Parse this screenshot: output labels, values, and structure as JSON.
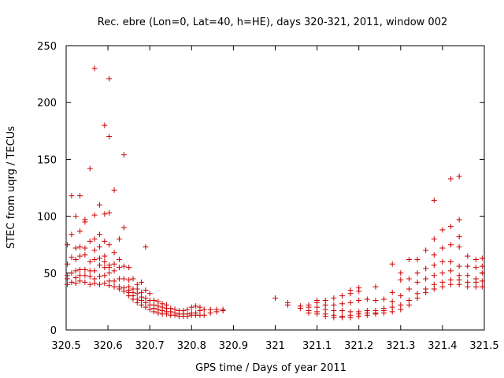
{
  "chart_data": {
    "type": "scatter",
    "title": "Rec. ebre (Lon=0, Lat=40, h=HE), days 320-321, 2011, window 002",
    "xlabel": "GPS time / Days of year 2011",
    "ylabel": "STEC from uqrg / TECUs",
    "xlim": [
      320.5,
      321.5
    ],
    "ylim": [
      0,
      250
    ],
    "xticks": [
      "320.5",
      "320.6",
      "320.7",
      "320.8",
      "320.9",
      "321",
      "321.1",
      "321.2",
      "321.3",
      "321.4",
      "321.5"
    ],
    "yticks": [
      "0",
      "50",
      "100",
      "150",
      "200",
      "250"
    ],
    "grid": false,
    "marker": "+",
    "marker_color": "#cc0000",
    "points": [
      [
        320.503,
        40
      ],
      [
        320.503,
        45
      ],
      [
        320.503,
        48
      ],
      [
        320.503,
        58
      ],
      [
        320.503,
        75
      ],
      [
        320.513,
        42
      ],
      [
        320.513,
        50
      ],
      [
        320.513,
        64
      ],
      [
        320.513,
        84
      ],
      [
        320.513,
        118
      ],
      [
        320.523,
        41
      ],
      [
        320.523,
        46
      ],
      [
        320.523,
        52
      ],
      [
        320.523,
        62
      ],
      [
        320.523,
        72
      ],
      [
        320.523,
        100
      ],
      [
        320.533,
        43
      ],
      [
        320.533,
        48
      ],
      [
        320.533,
        53
      ],
      [
        320.533,
        65
      ],
      [
        320.533,
        73
      ],
      [
        320.533,
        87
      ],
      [
        320.533,
        118
      ],
      [
        320.545,
        42
      ],
      [
        320.545,
        48
      ],
      [
        320.545,
        53
      ],
      [
        320.545,
        66
      ],
      [
        320.545,
        72
      ],
      [
        320.545,
        95
      ],
      [
        320.545,
        97
      ],
      [
        320.557,
        40
      ],
      [
        320.557,
        47
      ],
      [
        320.557,
        52
      ],
      [
        320.557,
        60
      ],
      [
        320.557,
        78
      ],
      [
        320.557,
        142
      ],
      [
        320.568,
        41
      ],
      [
        320.568,
        45
      ],
      [
        320.568,
        52
      ],
      [
        320.568,
        62
      ],
      [
        320.568,
        70
      ],
      [
        320.568,
        80
      ],
      [
        320.568,
        101
      ],
      [
        320.568,
        230
      ],
      [
        320.58,
        40
      ],
      [
        320.58,
        47
      ],
      [
        320.58,
        57
      ],
      [
        320.58,
        63
      ],
      [
        320.58,
        73
      ],
      [
        320.58,
        84
      ],
      [
        320.58,
        110
      ],
      [
        320.592,
        41
      ],
      [
        320.592,
        48
      ],
      [
        320.592,
        55
      ],
      [
        320.592,
        60
      ],
      [
        320.592,
        65
      ],
      [
        320.592,
        78
      ],
      [
        320.592,
        102
      ],
      [
        320.592,
        180
      ],
      [
        320.603,
        39
      ],
      [
        320.603,
        43
      ],
      [
        320.603,
        50
      ],
      [
        320.603,
        55
      ],
      [
        320.603,
        57
      ],
      [
        320.603,
        75
      ],
      [
        320.603,
        103
      ],
      [
        320.603,
        170
      ],
      [
        320.603,
        221
      ],
      [
        320.615,
        38
      ],
      [
        320.615,
        43
      ],
      [
        320.615,
        52
      ],
      [
        320.615,
        58
      ],
      [
        320.615,
        68
      ],
      [
        320.615,
        123
      ],
      [
        320.627,
        36
      ],
      [
        320.627,
        38
      ],
      [
        320.627,
        45
      ],
      [
        320.627,
        55
      ],
      [
        320.627,
        62
      ],
      [
        320.627,
        80
      ],
      [
        320.638,
        34
      ],
      [
        320.638,
        37
      ],
      [
        320.638,
        45
      ],
      [
        320.638,
        56
      ],
      [
        320.638,
        90
      ],
      [
        320.638,
        154
      ],
      [
        320.65,
        30
      ],
      [
        320.65,
        33
      ],
      [
        320.65,
        35
      ],
      [
        320.65,
        38
      ],
      [
        320.65,
        44
      ],
      [
        320.65,
        55
      ],
      [
        320.66,
        27
      ],
      [
        320.66,
        30
      ],
      [
        320.66,
        33
      ],
      [
        320.66,
        36
      ],
      [
        320.66,
        45
      ],
      [
        320.67,
        24
      ],
      [
        320.67,
        27
      ],
      [
        320.67,
        32
      ],
      [
        320.67,
        36
      ],
      [
        320.67,
        40
      ],
      [
        320.68,
        22
      ],
      [
        320.68,
        26
      ],
      [
        320.68,
        29
      ],
      [
        320.68,
        33
      ],
      [
        320.68,
        42
      ],
      [
        320.69,
        20
      ],
      [
        320.69,
        24
      ],
      [
        320.69,
        28
      ],
      [
        320.69,
        35
      ],
      [
        320.69,
        73
      ],
      [
        320.7,
        18
      ],
      [
        320.7,
        22
      ],
      [
        320.7,
        26
      ],
      [
        320.7,
        32
      ],
      [
        320.71,
        16
      ],
      [
        320.71,
        19
      ],
      [
        320.71,
        22
      ],
      [
        320.71,
        26
      ],
      [
        320.72,
        15
      ],
      [
        320.72,
        18
      ],
      [
        320.72,
        21
      ],
      [
        320.72,
        25
      ],
      [
        320.73,
        14
      ],
      [
        320.73,
        17
      ],
      [
        320.73,
        20
      ],
      [
        320.73,
        23
      ],
      [
        320.74,
        14
      ],
      [
        320.74,
        16
      ],
      [
        320.74,
        19
      ],
      [
        320.74,
        22
      ],
      [
        320.75,
        13
      ],
      [
        320.75,
        16
      ],
      [
        320.75,
        19
      ],
      [
        320.76,
        13
      ],
      [
        320.76,
        15
      ],
      [
        320.76,
        18
      ],
      [
        320.77,
        12
      ],
      [
        320.77,
        14
      ],
      [
        320.77,
        17
      ],
      [
        320.78,
        12
      ],
      [
        320.78,
        14
      ],
      [
        320.78,
        17
      ],
      [
        320.79,
        12
      ],
      [
        320.79,
        14
      ],
      [
        320.79,
        18
      ],
      [
        320.8,
        13
      ],
      [
        320.8,
        15
      ],
      [
        320.8,
        20
      ],
      [
        320.81,
        13
      ],
      [
        320.81,
        15
      ],
      [
        320.81,
        21
      ],
      [
        320.82,
        13
      ],
      [
        320.82,
        17
      ],
      [
        320.82,
        20
      ],
      [
        320.83,
        13
      ],
      [
        320.83,
        18
      ],
      [
        320.845,
        15
      ],
      [
        320.845,
        18
      ],
      [
        320.86,
        16
      ],
      [
        320.86,
        18
      ],
      [
        320.875,
        17
      ],
      [
        320.875,
        18
      ],
      [
        321.0,
        28
      ],
      [
        321.03,
        24
      ],
      [
        321.03,
        22
      ],
      [
        321.06,
        19
      ],
      [
        321.06,
        21
      ],
      [
        321.08,
        15
      ],
      [
        321.08,
        17
      ],
      [
        321.08,
        20
      ],
      [
        321.08,
        22
      ],
      [
        321.1,
        14
      ],
      [
        321.1,
        16
      ],
      [
        321.1,
        20
      ],
      [
        321.1,
        24
      ],
      [
        321.1,
        26
      ],
      [
        321.12,
        12
      ],
      [
        321.12,
        14
      ],
      [
        321.12,
        18
      ],
      [
        321.12,
        22
      ],
      [
        321.12,
        26
      ],
      [
        321.14,
        11
      ],
      [
        321.14,
        13
      ],
      [
        321.14,
        17
      ],
      [
        321.14,
        22
      ],
      [
        321.14,
        28
      ],
      [
        321.16,
        11
      ],
      [
        321.16,
        12
      ],
      [
        321.16,
        17
      ],
      [
        321.16,
        23
      ],
      [
        321.16,
        30
      ],
      [
        321.18,
        11
      ],
      [
        321.18,
        13
      ],
      [
        321.18,
        16
      ],
      [
        321.18,
        24
      ],
      [
        321.18,
        32
      ],
      [
        321.18,
        35
      ],
      [
        321.2,
        12
      ],
      [
        321.2,
        14
      ],
      [
        321.2,
        16
      ],
      [
        321.2,
        26
      ],
      [
        321.2,
        34
      ],
      [
        321.2,
        37
      ],
      [
        321.22,
        13
      ],
      [
        321.22,
        15
      ],
      [
        321.22,
        17
      ],
      [
        321.22,
        27
      ],
      [
        321.24,
        14
      ],
      [
        321.24,
        15
      ],
      [
        321.24,
        17
      ],
      [
        321.24,
        26
      ],
      [
        321.24,
        38
      ],
      [
        321.26,
        15
      ],
      [
        321.26,
        17
      ],
      [
        321.26,
        19
      ],
      [
        321.26,
        27
      ],
      [
        321.28,
        16
      ],
      [
        321.28,
        20
      ],
      [
        321.28,
        25
      ],
      [
        321.28,
        33
      ],
      [
        321.28,
        58
      ],
      [
        321.3,
        18
      ],
      [
        321.3,
        22
      ],
      [
        321.3,
        30
      ],
      [
        321.3,
        44
      ],
      [
        321.3,
        50
      ],
      [
        321.32,
        22
      ],
      [
        321.32,
        26
      ],
      [
        321.32,
        36
      ],
      [
        321.32,
        45
      ],
      [
        321.32,
        62
      ],
      [
        321.34,
        28
      ],
      [
        321.34,
        32
      ],
      [
        321.34,
        42
      ],
      [
        321.34,
        50
      ],
      [
        321.34,
        62
      ],
      [
        321.36,
        33
      ],
      [
        321.36,
        36
      ],
      [
        321.36,
        45
      ],
      [
        321.36,
        54
      ],
      [
        321.36,
        70
      ],
      [
        321.38,
        36
      ],
      [
        321.38,
        40
      ],
      [
        321.38,
        48
      ],
      [
        321.38,
        57
      ],
      [
        321.38,
        66
      ],
      [
        321.38,
        80
      ],
      [
        321.38,
        114
      ],
      [
        321.4,
        38
      ],
      [
        321.4,
        42
      ],
      [
        321.4,
        50
      ],
      [
        321.4,
        60
      ],
      [
        321.4,
        72
      ],
      [
        321.4,
        88
      ],
      [
        321.42,
        40
      ],
      [
        321.42,
        44
      ],
      [
        321.42,
        52
      ],
      [
        321.42,
        60
      ],
      [
        321.42,
        75
      ],
      [
        321.42,
        91
      ],
      [
        321.42,
        133
      ],
      [
        321.44,
        40
      ],
      [
        321.44,
        44
      ],
      [
        321.44,
        48
      ],
      [
        321.44,
        56
      ],
      [
        321.44,
        73
      ],
      [
        321.44,
        82
      ],
      [
        321.44,
        97
      ],
      [
        321.44,
        135
      ],
      [
        321.46,
        38
      ],
      [
        321.46,
        42
      ],
      [
        321.46,
        48
      ],
      [
        321.46,
        56
      ],
      [
        321.46,
        65
      ],
      [
        321.48,
        38
      ],
      [
        321.48,
        42
      ],
      [
        321.48,
        45
      ],
      [
        321.48,
        55
      ],
      [
        321.48,
        62
      ],
      [
        321.495,
        38
      ],
      [
        321.495,
        43
      ],
      [
        321.495,
        50
      ],
      [
        321.495,
        56
      ],
      [
        321.495,
        63
      ]
    ]
  }
}
